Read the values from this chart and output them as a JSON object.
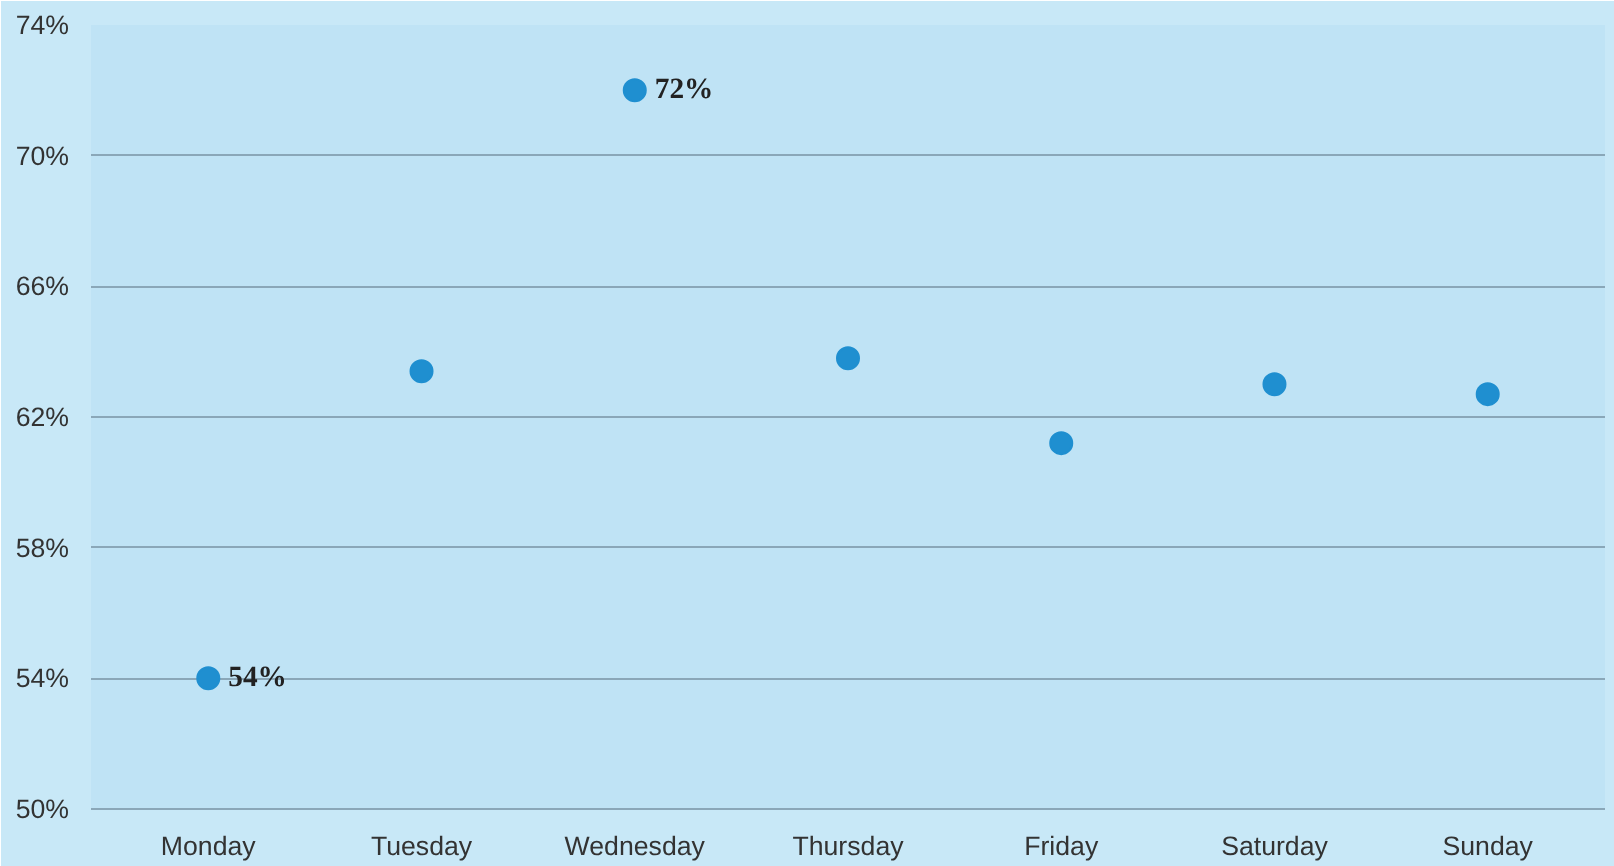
{
  "chart_data": {
    "type": "scatter",
    "categories": [
      "Monday",
      "Tuesday",
      "Wednesday",
      "Thursday",
      "Friday",
      "Saturday",
      "Sunday"
    ],
    "series": [
      {
        "color": "#1f8fd0",
        "values": [
          54,
          63.4,
          72,
          63.8,
          61.2,
          63.0,
          62.7
        ],
        "value_labels": [
          "54%",
          null,
          "72%",
          null,
          null,
          null,
          null
        ]
      }
    ],
    "ylim": [
      50,
      74
    ],
    "yticks": [
      {
        "value": 50,
        "label": "50%"
      },
      {
        "value": 54,
        "label": "54%"
      },
      {
        "value": 58,
        "label": "58%"
      },
      {
        "value": 62,
        "label": "62%"
      },
      {
        "value": 66,
        "label": "66%"
      },
      {
        "value": 70,
        "label": "70%"
      },
      {
        "value": 74,
        "label": "74%"
      }
    ],
    "grid": "y",
    "marker": "circle"
  }
}
